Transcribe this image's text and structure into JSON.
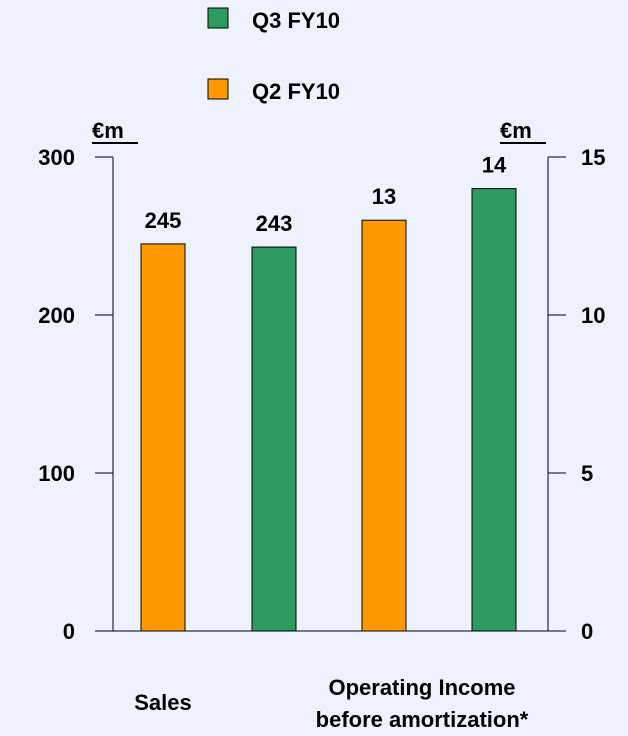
{
  "colors": {
    "background": "#EEF2FF",
    "q3": "#2E9B5F",
    "q2": "#FF9900",
    "axis": "#000000"
  },
  "chart_data": {
    "type": "bar",
    "legend": [
      {
        "name": "Q3 FY10",
        "color": "#2E9B5F"
      },
      {
        "name": "Q2 FY10",
        "color": "#FF9900"
      }
    ],
    "left_axis": {
      "unit": "€m",
      "ylim": [
        0,
        300
      ],
      "ticks": [
        0,
        100,
        200,
        300
      ]
    },
    "right_axis": {
      "unit": "€m",
      "ylim": [
        0,
        15
      ],
      "ticks": [
        0,
        5,
        10,
        15
      ]
    },
    "groups": [
      {
        "label": "Sales",
        "axis": "left"
      },
      {
        "label": "Operating Income before amortization*",
        "axis": "right"
      }
    ],
    "bars": [
      {
        "group": 0,
        "series": "Q2 FY10",
        "value": 245,
        "label": "245"
      },
      {
        "group": 0,
        "series": "Q3 FY10",
        "value": 243,
        "label": "243"
      },
      {
        "group": 1,
        "series": "Q2 FY10",
        "value": 13,
        "label": "13"
      },
      {
        "group": 1,
        "series": "Q3 FY10",
        "value": 14,
        "label": "14"
      }
    ],
    "category_labels": {
      "sales": "Sales",
      "op_line1": "Operating Income",
      "op_line2": "before amortization*"
    }
  }
}
